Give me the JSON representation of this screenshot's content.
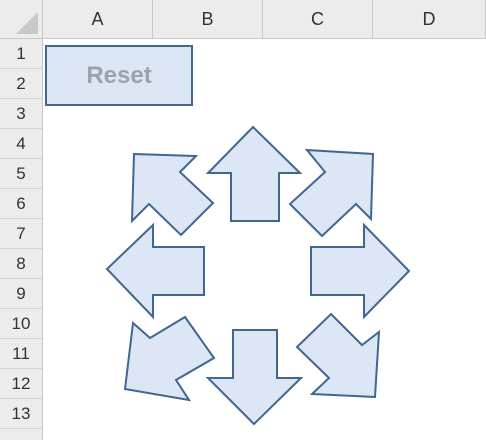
{
  "columns": [
    "A",
    "B",
    "C",
    "D"
  ],
  "rows": [
    "1",
    "2",
    "3",
    "4",
    "5",
    "6",
    "7",
    "8",
    "9",
    "10",
    "11",
    "12",
    "13"
  ],
  "reset_button": {
    "label": "Reset"
  },
  "colors": {
    "arrow_fill": "#dce6f5",
    "arrow_stroke": "#3f6791",
    "header_bg": "#ececec"
  },
  "arrows": [
    {
      "name": "arrow-up-icon"
    },
    {
      "name": "arrow-up-right-icon"
    },
    {
      "name": "arrow-right-icon"
    },
    {
      "name": "arrow-down-right-icon"
    },
    {
      "name": "arrow-down-icon"
    },
    {
      "name": "arrow-down-left-icon"
    },
    {
      "name": "arrow-left-icon"
    },
    {
      "name": "arrow-up-left-icon"
    }
  ]
}
